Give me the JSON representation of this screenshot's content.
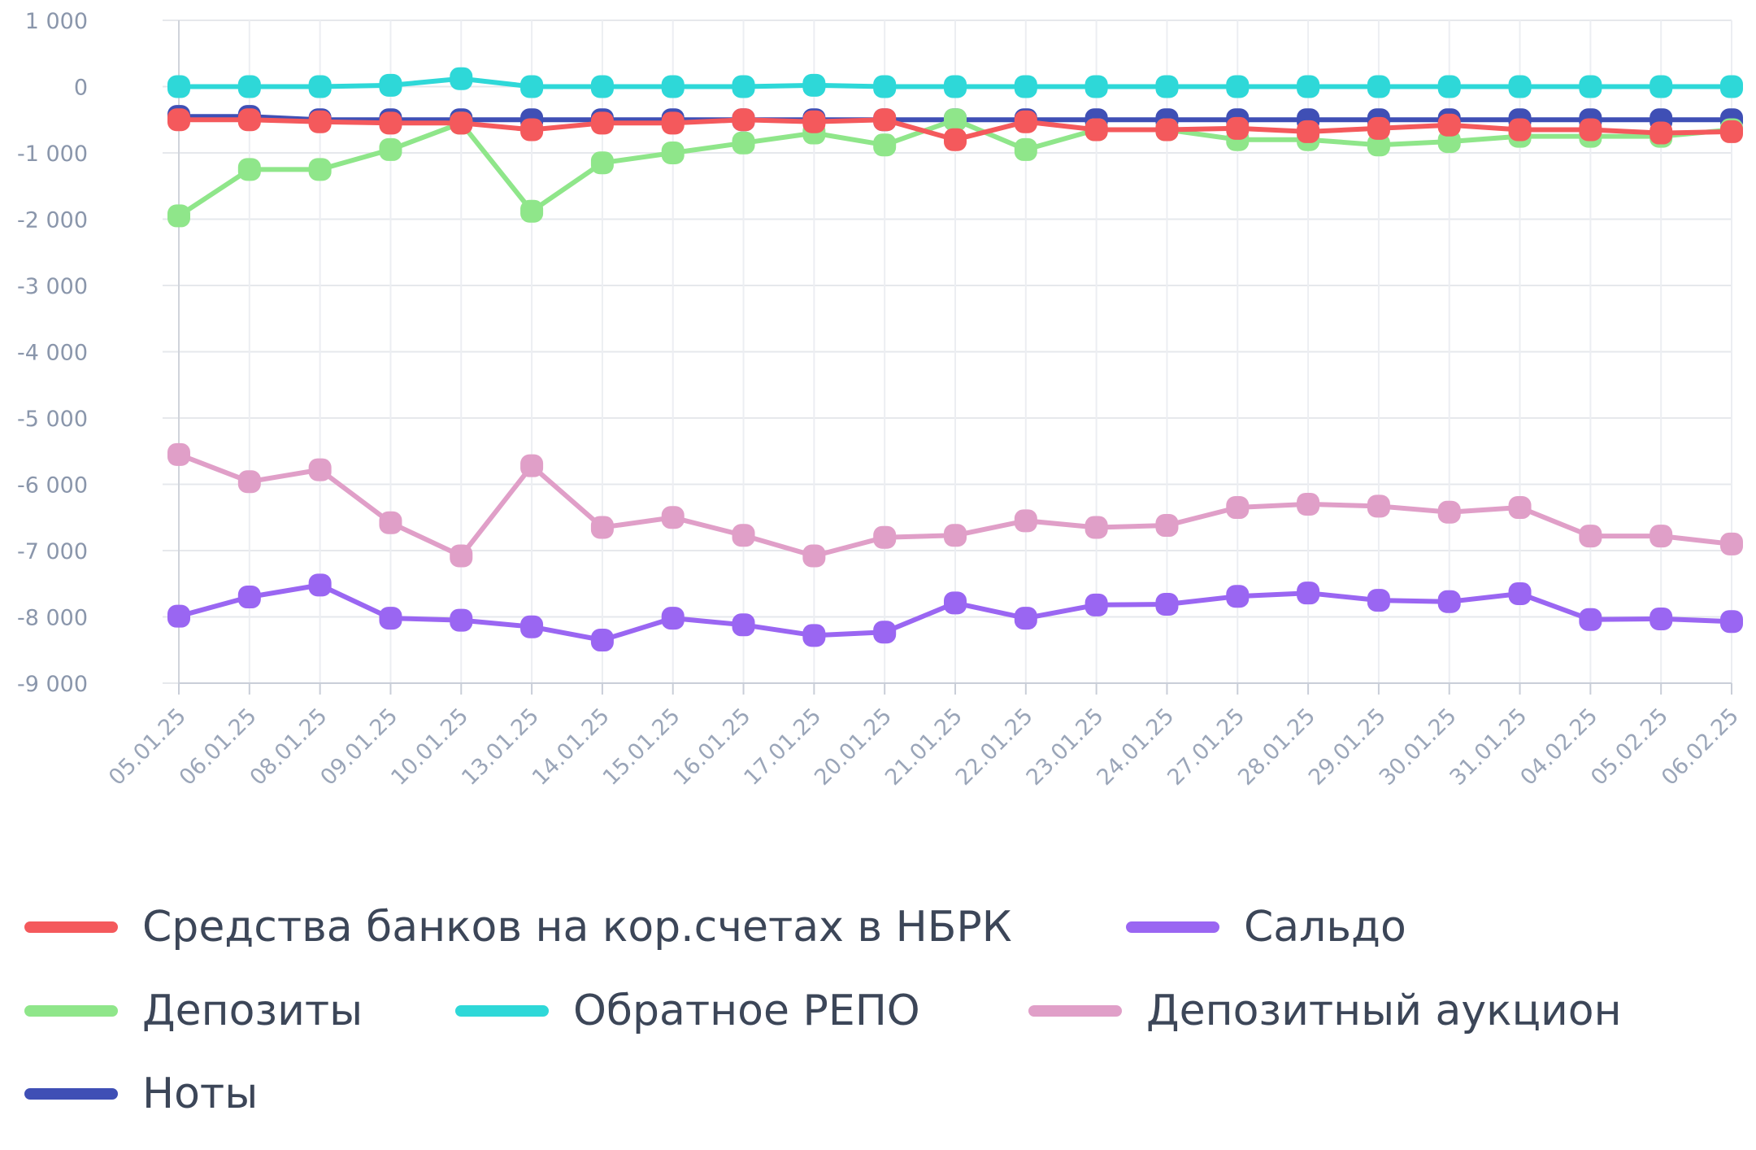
{
  "chart_data": {
    "type": "line",
    "title": "",
    "xlabel": "",
    "ylabel": "",
    "ylim": [
      -9000,
      1000
    ],
    "yticks": [
      1000,
      0,
      -1000,
      -2000,
      -3000,
      -4000,
      -5000,
      -6000,
      -7000,
      -8000,
      -9000
    ],
    "ytick_labels": [
      "1 000",
      "0",
      "-1 000",
      "-2 000",
      "-3 000",
      "-4 000",
      "-5 000",
      "-6 000",
      "-7 000",
      "-8 000",
      "-9 000"
    ],
    "grid": true,
    "legend_position": "bottom",
    "categories": [
      "05.01.25",
      "06.01.25",
      "08.01.25",
      "09.01.25",
      "10.01.25",
      "13.01.25",
      "14.01.25",
      "15.01.25",
      "16.01.25",
      "17.01.25",
      "20.01.25",
      "21.01.25",
      "22.01.25",
      "23.01.25",
      "24.01.25",
      "27.01.25",
      "28.01.25",
      "29.01.25",
      "30.01.25",
      "31.01.25",
      "04.02.25",
      "05.02.25",
      "06.02.25"
    ],
    "series": [
      {
        "name": "Ноты",
        "color": "#3f4fb5",
        "values": [
          -450,
          -450,
          -500,
          -500,
          -500,
          -500,
          -500,
          -500,
          -500,
          -500,
          -500,
          -500,
          -500,
          -500,
          -500,
          -500,
          -500,
          -500,
          -500,
          -500,
          -500,
          -500,
          -500
        ]
      },
      {
        "name": "Депозиты",
        "color": "#8fe68a",
        "values": [
          -1950,
          -1250,
          -1250,
          -950,
          -550,
          -1880,
          -1150,
          -1000,
          -850,
          -700,
          -880,
          -500,
          -950,
          -650,
          -650,
          -800,
          -800,
          -880,
          -830,
          -750,
          -750,
          -750,
          -650
        ]
      },
      {
        "name": "Обратное РЕПО",
        "color": "#2ed8d8",
        "values": [
          0,
          0,
          0,
          20,
          120,
          0,
          0,
          0,
          0,
          20,
          0,
          0,
          0,
          0,
          0,
          0,
          0,
          0,
          0,
          0,
          0,
          0,
          0
        ]
      },
      {
        "name": "Средства банков на кор.счетах в НБРК",
        "color": "#f4595c",
        "values": [
          -500,
          -500,
          -530,
          -550,
          -550,
          -650,
          -550,
          -550,
          -500,
          -530,
          -500,
          -800,
          -530,
          -650,
          -650,
          -630,
          -680,
          -630,
          -580,
          -650,
          -650,
          -700,
          -680
        ]
      },
      {
        "name": "Депозитный аукцион",
        "color": "#e09fc8",
        "values": [
          -5550,
          -5960,
          -5780,
          -6580,
          -7080,
          -5720,
          -6650,
          -6500,
          -6770,
          -7080,
          -6800,
          -6770,
          -6550,
          -6650,
          -6620,
          -6350,
          -6300,
          -6330,
          -6420,
          -6350,
          -6780,
          -6780,
          -6900
        ]
      },
      {
        "name": "Сальдо",
        "color": "#9a66f2",
        "values": [
          -7990,
          -7700,
          -7520,
          -8020,
          -8050,
          -8150,
          -8350,
          -8020,
          -8120,
          -8280,
          -8230,
          -7790,
          -8020,
          -7820,
          -7810,
          -7690,
          -7640,
          -7750,
          -7770,
          -7650,
          -8040,
          -8030,
          -8070
        ]
      }
    ]
  },
  "legend": {
    "items": [
      {
        "label": "Средства банков на кор.счетах в НБРК",
        "color": "#f4595c"
      },
      {
        "label": "Сальдо",
        "color": "#9a66f2"
      },
      {
        "label": "Депозиты",
        "color": "#8fe68a"
      },
      {
        "label": "Обратное РЕПО",
        "color": "#2ed8d8"
      },
      {
        "label": "Депозитный аукцион",
        "color": "#e09fc8"
      },
      {
        "label": "Ноты",
        "color": "#3f4fb5"
      }
    ]
  }
}
